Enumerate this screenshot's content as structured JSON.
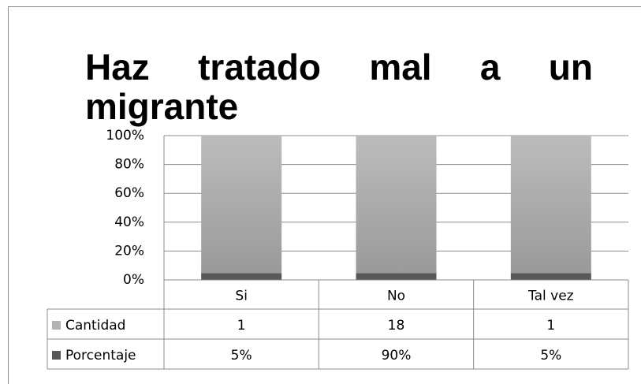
{
  "chart_data": {
    "type": "bar",
    "stacking": "percent",
    "title": "Haz tratado mal a un migrante",
    "categories": [
      "Si",
      "No",
      "Tal vez"
    ],
    "series": [
      {
        "name": "Cantidad",
        "color": "#b3b3b3",
        "values": [
          1,
          18,
          1
        ]
      },
      {
        "name": "Porcentaje",
        "color": "#595959",
        "values": [
          0.05,
          0.9,
          0.05
        ],
        "value_labels": [
          "5%",
          "90%",
          "5%"
        ]
      }
    ],
    "ylim": [
      0,
      100
    ],
    "yticks": [
      {
        "value": 0,
        "label": "0%"
      },
      {
        "value": 20,
        "label": "20%"
      },
      {
        "value": 40,
        "label": "40%"
      },
      {
        "value": 60,
        "label": "60%"
      },
      {
        "value": 80,
        "label": "80%"
      },
      {
        "value": 100,
        "label": "100%"
      }
    ],
    "grid": true
  }
}
